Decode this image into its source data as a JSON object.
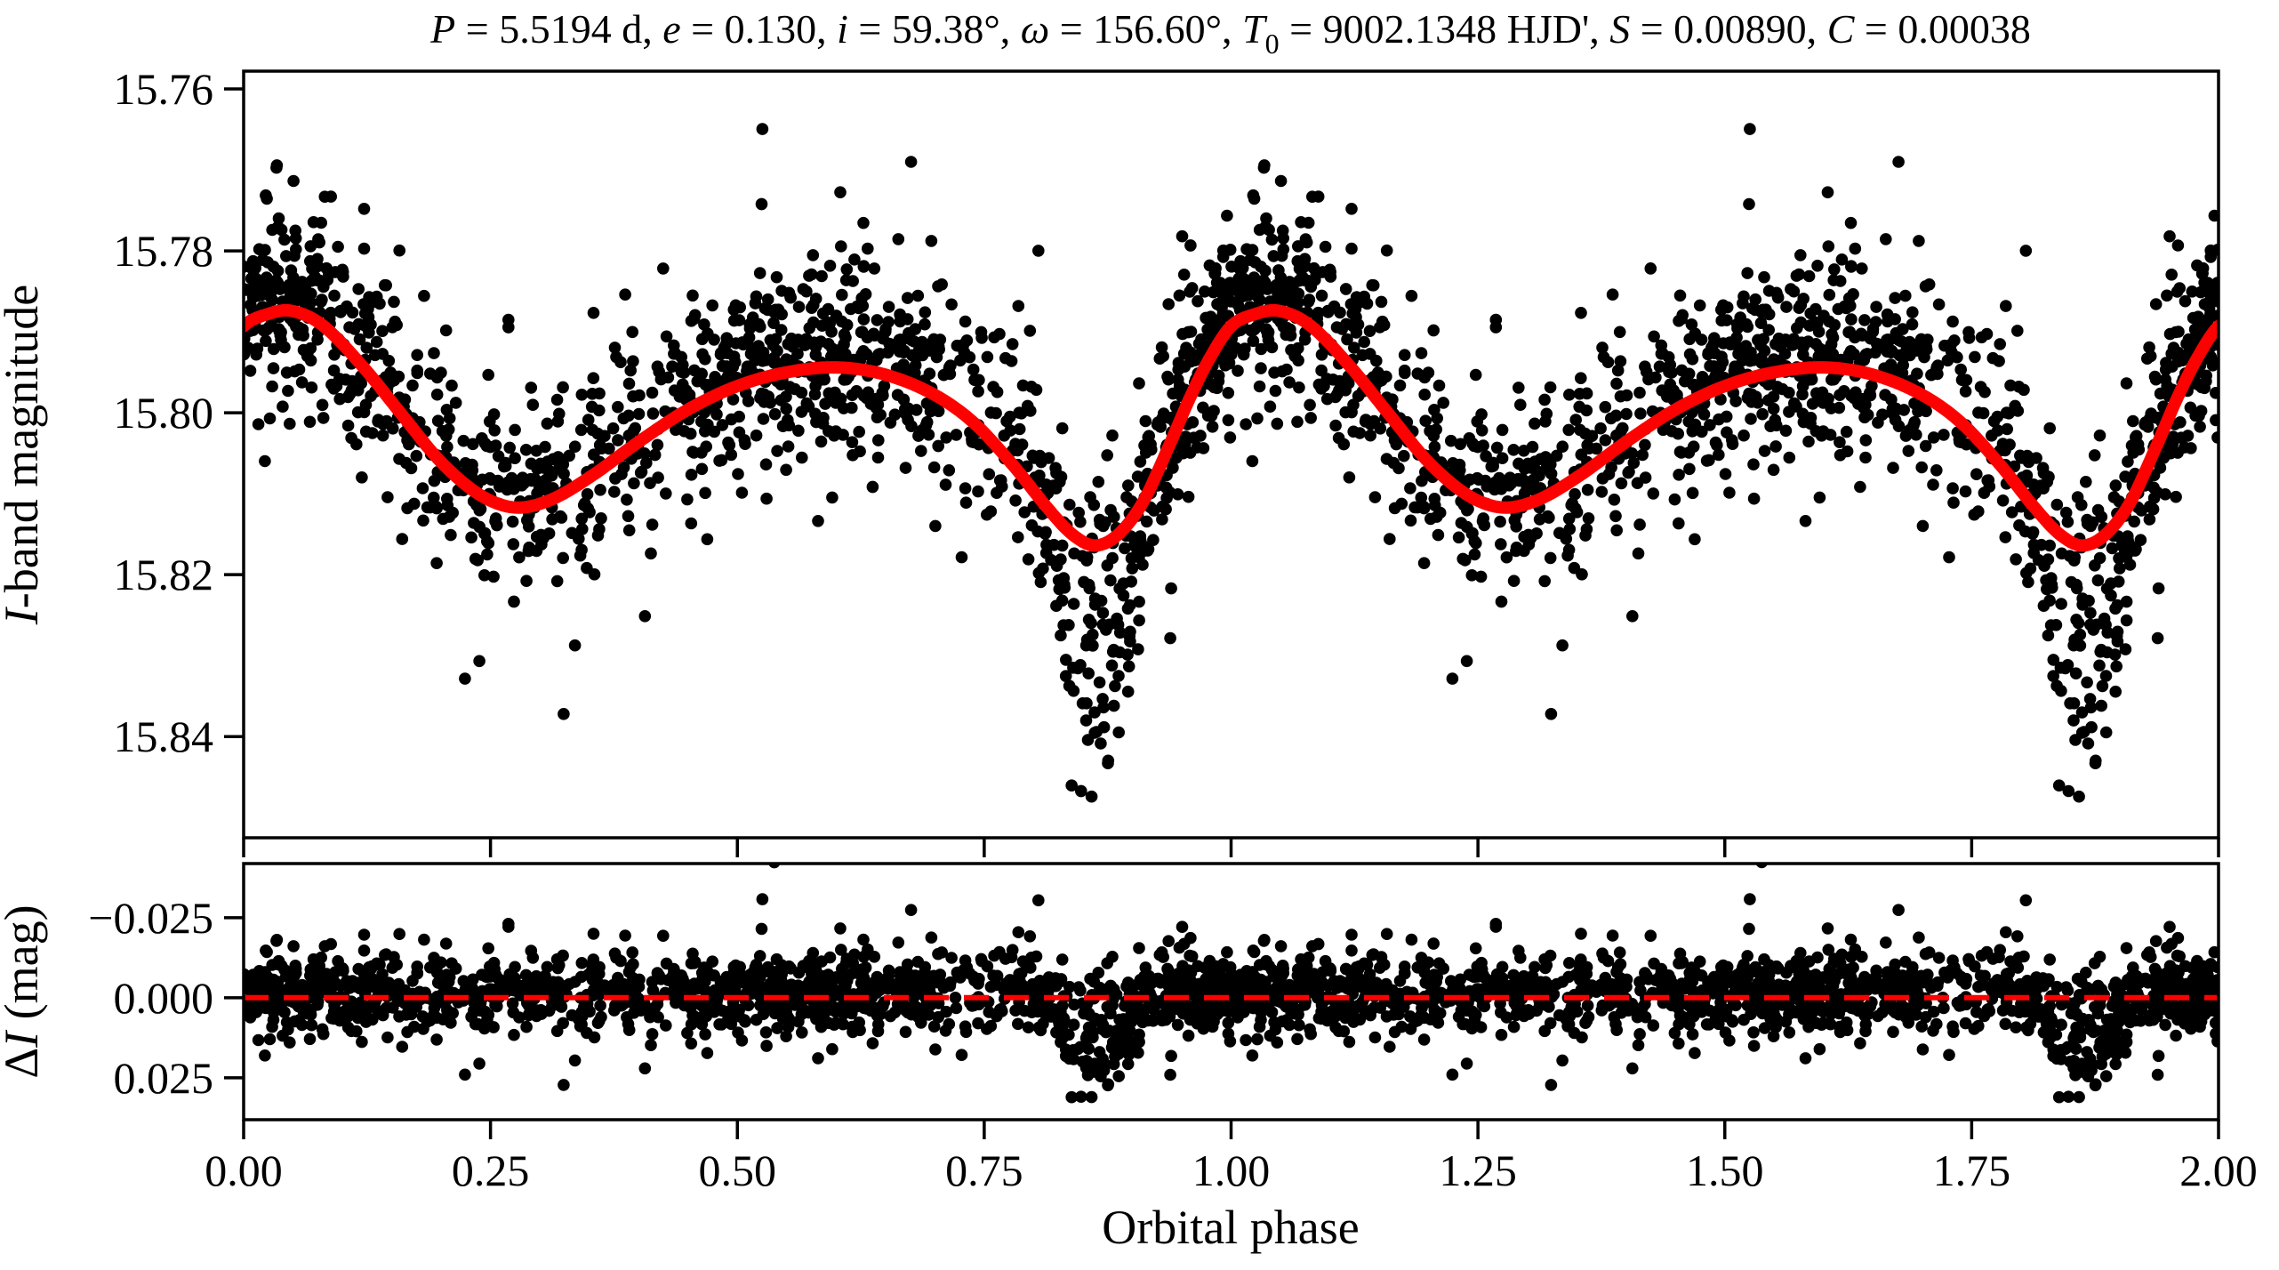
{
  "figure": {
    "background": "#ffffff",
    "text_color": "#000000",
    "accent_red": "#ff0000"
  },
  "chart_data": {
    "type": "scatter",
    "title_plain": "P = 5.5194 d, e = 0.130, i = 59.38°, ω = 156.60°, T0 = 9002.1348 HJD', S = 0.00890, C = 0.00038",
    "title_segments": [
      {
        "t": "P",
        "italic": true
      },
      {
        "t": " = 5.5194 d,  "
      },
      {
        "t": "e",
        "italic": true
      },
      {
        "t": " = 0.130,  "
      },
      {
        "t": "i",
        "italic": true
      },
      {
        "t": " = 59.38°,  "
      },
      {
        "t": "ω",
        "italic": true
      },
      {
        "t": " = 156.60°,  "
      },
      {
        "t": "T",
        "italic": true
      },
      {
        "t": "0",
        "sub": true
      },
      {
        "t": " = 9002.1348 HJD',  "
      },
      {
        "t": "S",
        "italic": true
      },
      {
        "t": " = 0.00890,  "
      },
      {
        "t": "C",
        "italic": true
      },
      {
        "t": " = 0.00038"
      }
    ],
    "xlabel": "Orbital phase",
    "xlim": [
      0.0,
      2.0
    ],
    "xticks": [
      0.0,
      0.25,
      0.5,
      0.75,
      1.0,
      1.25,
      1.5,
      1.75,
      2.0
    ],
    "xtick_labels": [
      "0.00",
      "0.25",
      "0.50",
      "0.75",
      "1.00",
      "1.25",
      "1.50",
      "1.75",
      "2.00"
    ],
    "panels": {
      "light_curve": {
        "ylabel_plain": "I-band magnitude",
        "ylabel_segments": [
          {
            "t": "I",
            "italic": true
          },
          {
            "t": "-band magnitude"
          }
        ],
        "y_inverted": true,
        "ylim": [
          15.7578,
          15.8525
        ],
        "yticks": [
          15.76,
          15.78,
          15.8,
          15.82,
          15.84
        ],
        "ytick_labels": [
          "15.76",
          "15.78",
          "15.80",
          "15.82",
          "15.84"
        ],
        "marker": {
          "color": "#000000",
          "radius": 6.8
        },
        "model_curve": {
          "color": "#ff0000",
          "linewidth": 14,
          "points": [
            [
              0.0,
              15.7893
            ],
            [
              0.022,
              15.7879
            ],
            [
              0.048,
              15.7874
            ],
            [
              0.08,
              15.7892
            ],
            [
              0.12,
              15.7942
            ],
            [
              0.16,
              15.8002
            ],
            [
              0.2,
              15.8061
            ],
            [
              0.24,
              15.8102
            ],
            [
              0.275,
              15.8117
            ],
            [
              0.31,
              15.8108
            ],
            [
              0.35,
              15.808
            ],
            [
              0.4,
              15.8036
            ],
            [
              0.45,
              15.7996
            ],
            [
              0.5,
              15.7967
            ],
            [
              0.55,
              15.795
            ],
            [
              0.6,
              15.7944
            ],
            [
              0.65,
              15.7953
            ],
            [
              0.7,
              15.7978
            ],
            [
              0.74,
              15.8013
            ],
            [
              0.78,
              15.8066
            ],
            [
              0.815,
              15.8119
            ],
            [
              0.84,
              15.8151
            ],
            [
              0.862,
              15.8164
            ],
            [
              0.885,
              15.8151
            ],
            [
              0.91,
              15.8112
            ],
            [
              0.935,
              15.8047
            ],
            [
              0.96,
              15.7977
            ],
            [
              0.98,
              15.7929
            ],
            [
              1.0,
              15.7893
            ]
          ],
          "phase_repeat_offset": 1.0
        }
      },
      "residuals": {
        "ylabel_plain": "ΔI (mag)",
        "ylabel_segments": [
          {
            "t": "Δ"
          },
          {
            "t": "I",
            "italic": true
          },
          {
            "t": " (mag)"
          }
        ],
        "y_inverted": true,
        "ylim": [
          -0.0419,
          0.0381
        ],
        "yticks": [
          -0.025,
          0.0,
          0.025
        ],
        "ytick_labels": [
          "−0.025",
          "0.000",
          "0.025"
        ],
        "marker": {
          "color": "#000000",
          "radius": 6.8
        },
        "zero_line": {
          "color": "#ff0000",
          "style": "dashed",
          "value": 0.0
        }
      }
    },
    "scatter_generation": {
      "seed": 1234,
      "n_points": 1450,
      "plotted_twice_with_phase_offset": 1.0,
      "noise_sigma_mag": 0.006,
      "outlier_sigma_mag": 0.011,
      "outlier_fraction": 0.12,
      "brightness_bias_mag": -0.0012,
      "eclipse_excess": {
        "center_phase": 0.862,
        "half_width": 0.052,
        "max_extra_depth_mag": 0.028,
        "probability": 0.8
      },
      "phase_density_clusters": {
        "uniform_fraction": 0.68,
        "centers": [
          0.08,
          0.58,
          0.97
        ],
        "sigmas": [
          0.1,
          0.08,
          0.07
        ]
      }
    }
  }
}
